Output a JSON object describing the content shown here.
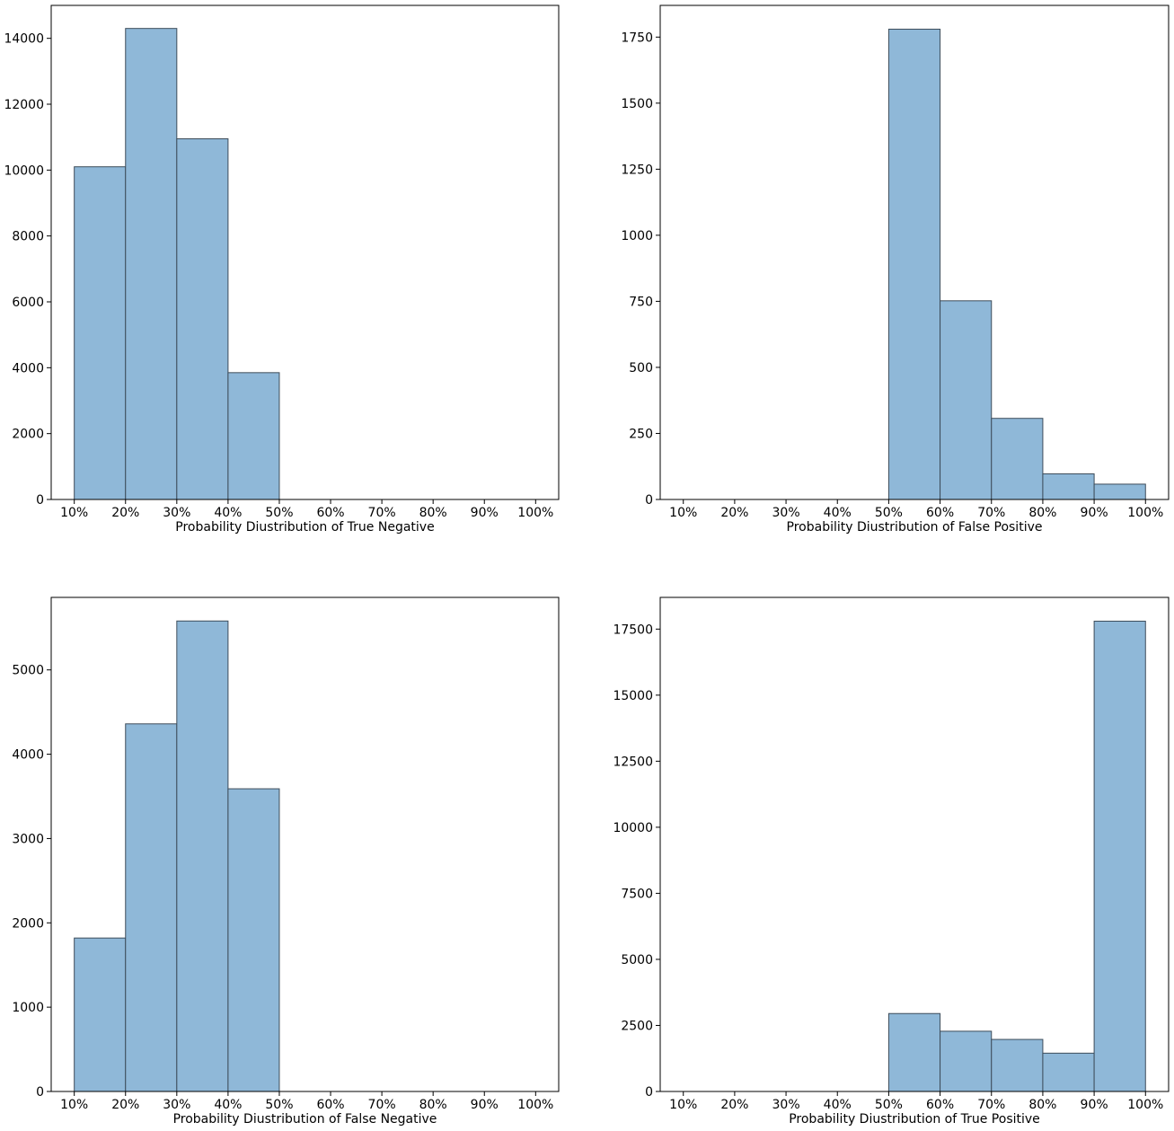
{
  "chart_data": [
    {
      "type": "bar",
      "xlabel": "Probability Diustribution of True Negative",
      "ylabel": "",
      "x_ticks": [
        "10%",
        "20%",
        "30%",
        "40%",
        "50%",
        "60%",
        "70%",
        "80%",
        "90%",
        "100%"
      ],
      "y_ticks": [
        "0",
        "2000",
        "4000",
        "6000",
        "8000",
        "10000",
        "12000",
        "14000"
      ],
      "ylim": [
        0,
        15000
      ],
      "bins": [
        [
          10,
          20
        ],
        [
          20,
          30
        ],
        [
          30,
          40
        ],
        [
          40,
          50
        ]
      ],
      "values": [
        10100,
        14300,
        10950,
        3850
      ],
      "grid": false,
      "bar_color": "#8fb8d8"
    },
    {
      "type": "bar",
      "xlabel": "Probability Diustribution of False Positive",
      "ylabel": "",
      "x_ticks": [
        "10%",
        "20%",
        "30%",
        "40%",
        "50%",
        "60%",
        "70%",
        "80%",
        "90%",
        "100%"
      ],
      "y_ticks": [
        "0",
        "250",
        "500",
        "750",
        "1000",
        "1250",
        "1500",
        "1750"
      ],
      "ylim": [
        0,
        1870
      ],
      "bins": [
        [
          50,
          60
        ],
        [
          60,
          70
        ],
        [
          70,
          80
        ],
        [
          80,
          90
        ],
        [
          90,
          100
        ]
      ],
      "values": [
        1780,
        752,
        307,
        97,
        58
      ],
      "grid": false,
      "bar_color": "#8fb8d8"
    },
    {
      "type": "bar",
      "xlabel": "Probability Diustribution of False Negative",
      "ylabel": "",
      "x_ticks": [
        "10%",
        "20%",
        "30%",
        "40%",
        "50%",
        "60%",
        "70%",
        "80%",
        "90%",
        "100%"
      ],
      "y_ticks": [
        "0",
        "1000",
        "2000",
        "3000",
        "4000",
        "5000"
      ],
      "ylim": [
        0,
        5860
      ],
      "bins": [
        [
          10,
          20
        ],
        [
          20,
          30
        ],
        [
          30,
          40
        ],
        [
          40,
          50
        ]
      ],
      "values": [
        1820,
        4360,
        5580,
        3590
      ],
      "grid": false,
      "bar_color": "#8fb8d8"
    },
    {
      "type": "bar",
      "xlabel": "Probability Diustribution of True Positive",
      "ylabel": "",
      "x_ticks": [
        "10%",
        "20%",
        "30%",
        "40%",
        "50%",
        "60%",
        "70%",
        "80%",
        "90%",
        "100%"
      ],
      "y_ticks": [
        "0",
        "2500",
        "5000",
        "7500",
        "10000",
        "12500",
        "15000",
        "17500"
      ],
      "ylim": [
        0,
        18700
      ],
      "bins": [
        [
          50,
          60
        ],
        [
          60,
          70
        ],
        [
          70,
          80
        ],
        [
          80,
          90
        ],
        [
          90,
          100
        ]
      ],
      "values": [
        2950,
        2280,
        1970,
        1450,
        17800
      ],
      "grid": false,
      "bar_color": "#8fb8d8"
    }
  ]
}
